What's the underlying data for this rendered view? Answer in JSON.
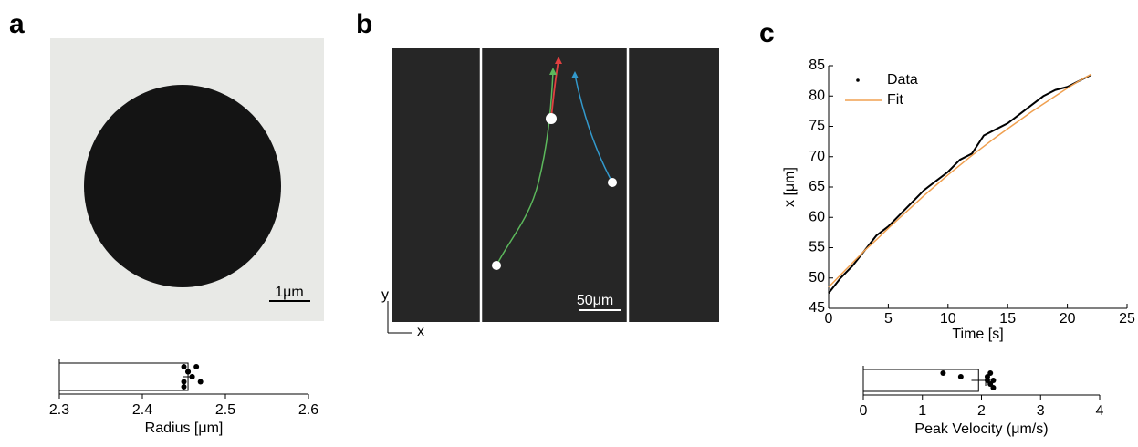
{
  "panels": [
    {
      "label": "a",
      "scale_bar": "1μm"
    },
    {
      "label": "b",
      "scale_bar": "50μm",
      "axis_x": "x",
      "axis_y": "y"
    },
    {
      "label": "c"
    }
  ],
  "chart_data": [
    {
      "type": "hbar",
      "xlabel": "Radius [μm]",
      "xlim": [
        2.3,
        2.6
      ],
      "xticks": [
        2.3,
        2.4,
        2.5,
        2.6
      ],
      "values": [
        2.455
      ],
      "errors": [
        0.006
      ],
      "color": "#ffffff",
      "points": [
        2.45,
        2.455,
        2.46,
        2.47,
        2.45,
        2.465,
        2.455,
        2.46,
        2.45
      ]
    },
    {
      "type": "line",
      "xlabel": "Time [s]",
      "ylabel": "x [μm]",
      "xlim": [
        0,
        25
      ],
      "xticks": [
        0,
        5,
        10,
        15,
        20,
        25
      ],
      "ylim": [
        45,
        85
      ],
      "yticks": [
        45,
        50,
        55,
        60,
        65,
        70,
        75,
        80,
        85
      ],
      "legend": "upper left",
      "x": [
        0,
        1,
        2,
        3,
        4,
        5,
        6,
        7,
        8,
        9,
        10,
        11,
        12,
        13,
        14,
        15,
        16,
        17,
        18,
        19,
        20,
        21,
        22
      ],
      "series": [
        {
          "name": "Data",
          "color": "#000000",
          "values": [
            47.5,
            50.0,
            52.0,
            54.5,
            57.0,
            58.5,
            60.5,
            62.5,
            64.5,
            66.0,
            67.5,
            69.5,
            70.5,
            73.5,
            74.5,
            75.5,
            77.0,
            78.5,
            80.0,
            81.0,
            81.5,
            82.5,
            83.5
          ]
        },
        {
          "name": "Fit",
          "color": "#f0a050",
          "values": [
            48.5,
            50.5,
            52.5,
            54.5,
            56.3,
            58.2,
            60.0,
            61.8,
            63.6,
            65.3,
            67.0,
            68.6,
            70.2,
            71.7,
            73.2,
            74.6,
            76.0,
            77.4,
            78.7,
            80.0,
            81.3,
            82.5,
            83.6
          ]
        }
      ]
    },
    {
      "type": "hbar",
      "xlabel": "Peak Velocity (μm/s)",
      "xlim": [
        0,
        4
      ],
      "xticks": [
        0,
        1,
        2,
        3,
        4
      ],
      "values": [
        1.95
      ],
      "errors": [
        0.12
      ],
      "color": "#ffffff",
      "points": [
        1.35,
        1.65,
        2.1,
        2.15,
        2.2,
        2.15,
        2.1,
        2.2
      ]
    }
  ]
}
